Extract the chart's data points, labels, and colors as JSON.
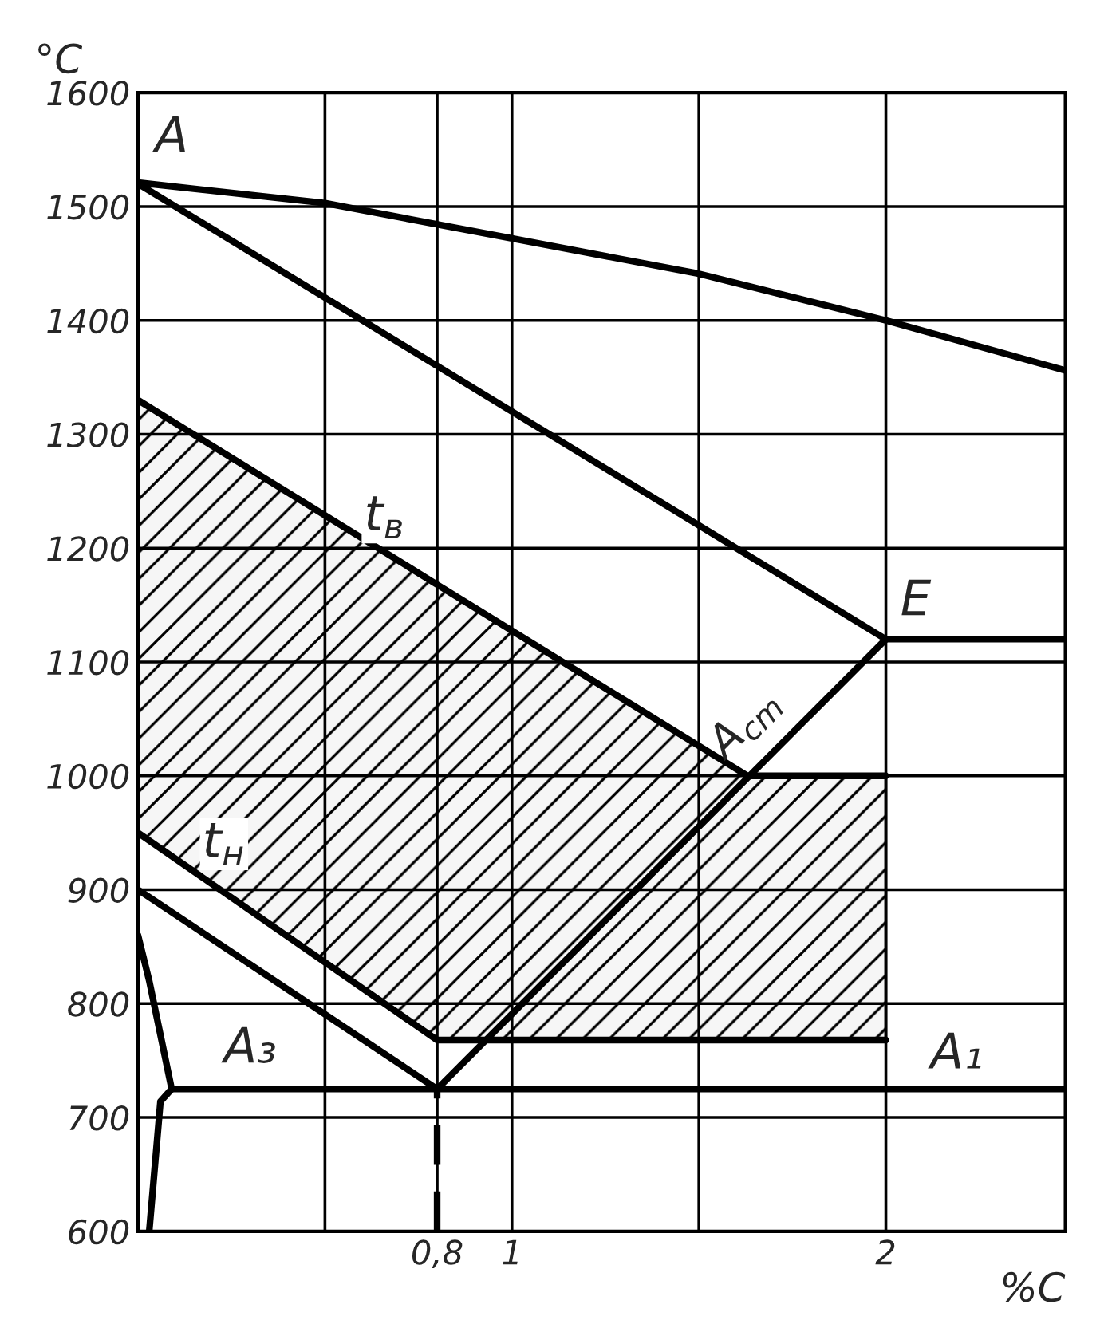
{
  "chart_data": {
    "type": "line",
    "xlabel": "%C",
    "ylabel": "°C",
    "xlim": [
      0,
      2.48
    ],
    "ylim": [
      600,
      1600
    ],
    "xticks": [
      {
        "value": 0.5,
        "label": null
      },
      {
        "value": 0.8,
        "label": "0,8"
      },
      1,
      {
        "value": 1.5,
        "label": null
      },
      2
    ],
    "yticks": [
      600,
      700,
      800,
      900,
      1000,
      1100,
      1200,
      1300,
      1400,
      1500,
      1600
    ],
    "grid": true,
    "marker": "none",
    "series": [
      {
        "color": "#000000",
        "x": [
          0,
          0.5,
          1,
          1.5,
          2,
          2.48
        ],
        "values": [
          1521,
          1503,
          1472,
          1441,
          1400,
          1356
        ]
      },
      {
        "color": "#000000",
        "x": [
          0,
          2
        ],
        "values": [
          1520,
          1120
        ]
      },
      {
        "color": "#000000",
        "x": [
          2,
          2.48
        ],
        "values": [
          1120,
          1120
        ]
      },
      {
        "name": "A$_{cm}$",
        "color": "#000000",
        "x": [
          0.8,
          2
        ],
        "values": [
          725,
          1120
        ]
      },
      {
        "color": "#000000",
        "x": [
          0,
          0.8
        ],
        "values": [
          900,
          725
        ]
      },
      {
        "color": "#000000",
        "x": [
          0.09,
          2.48
        ],
        "values": [
          725,
          725
        ]
      },
      {
        "color": "#000000",
        "x": [
          0,
          0.03,
          0.09
        ],
        "values": [
          860,
          820,
          725
        ]
      },
      {
        "color": "#000000",
        "x": [
          0.03,
          0.06,
          0.09
        ],
        "values": [
          600,
          714,
          725
        ]
      },
      {
        "color": "#000000",
        "x": [
          0.8,
          0.8
        ],
        "values": [
          600,
          725
        ],
        "line_style": "dashed"
      },
      {
        "type": "line",
        "color": "#000000",
        "x": [
          0,
          0.8,
          1.63,
          2
        ],
        "values": [
          1330,
          1168,
          1000,
          1000
        ],
        "lower": [
          950,
          768,
          768,
          768
        ],
        "upper": [
          1330,
          1168,
          1000,
          1000
        ]
      }
    ],
    "annotations": [
      {
        "text": "A",
        "x": 0.09,
        "y": 1560
      },
      {
        "text": "E",
        "x": 2.08,
        "y": 1153
      },
      {
        "text": "t$_{в}$",
        "x": 0.66,
        "y": 1227
      },
      {
        "text": "t$_{н}$",
        "x": 0.23,
        "y": 940
      },
      {
        "text": "A₃",
        "x": 0.3,
        "y": 760
      },
      {
        "text": "A₁",
        "x": 2.19,
        "y": 755
      }
    ]
  }
}
